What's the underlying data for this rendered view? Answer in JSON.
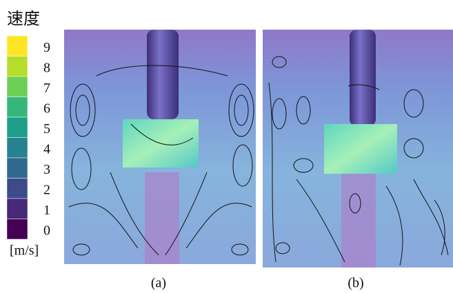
{
  "legend": {
    "title": "速度",
    "ticks": [
      9,
      8,
      7,
      6,
      5,
      4,
      3,
      2,
      1,
      0
    ],
    "unit": "[m/s]"
  },
  "panels": [
    {
      "label": "(a)"
    },
    {
      "label": "(b)"
    }
  ]
}
